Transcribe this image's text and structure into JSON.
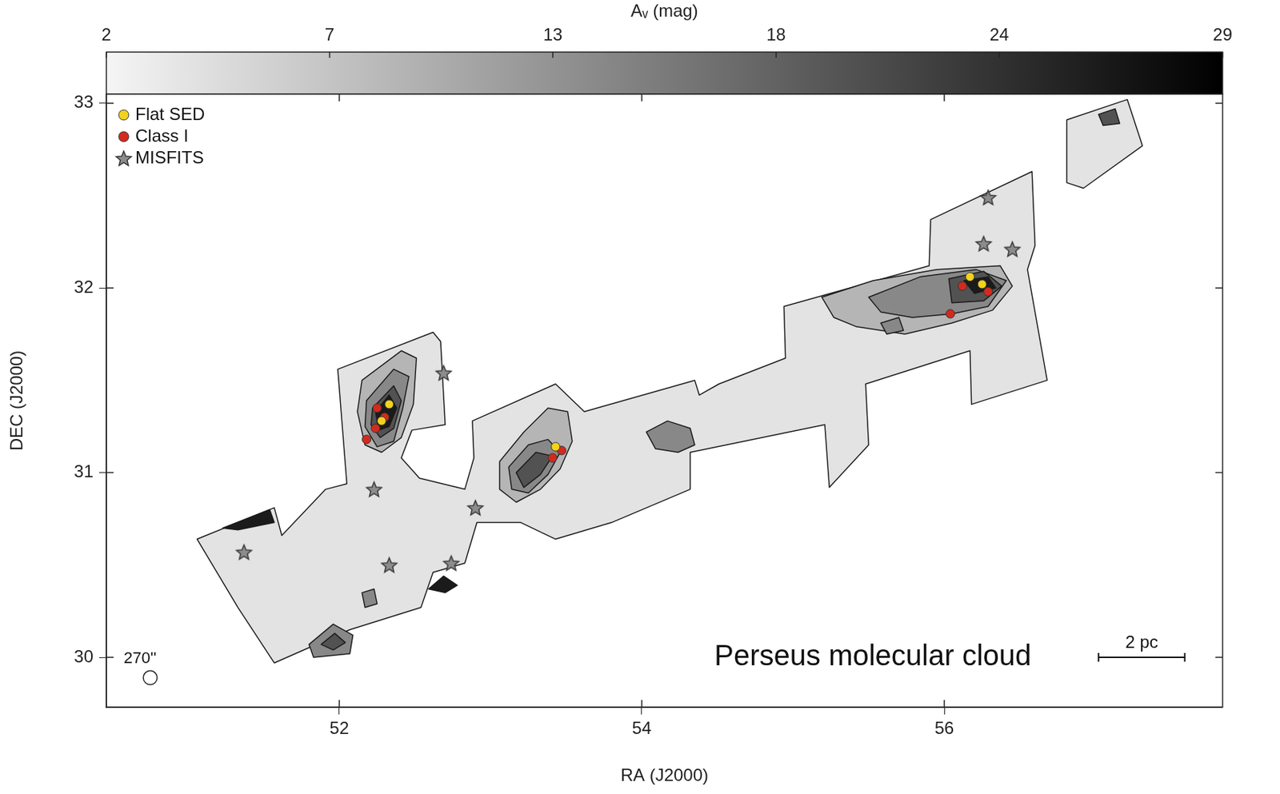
{
  "chart_data": {
    "type": "scatter",
    "x_label": "RA (J2000)",
    "y_label": "DEC (J2000)",
    "xlim": [
      50.46,
      57.84
    ],
    "xticks": [
      52,
      54,
      56
    ],
    "ylim": [
      29.73,
      33.05
    ],
    "yticks": [
      30,
      31,
      32,
      33
    ],
    "grid": false,
    "legend": "upper left",
    "series": [
      {
        "name": "Flat SED",
        "color": "#f2d21b",
        "marker": "circle",
        "x": [
          52.33,
          52.28,
          53.43,
          56.17,
          56.25
        ],
        "values": [
          31.37,
          31.28,
          31.14,
          32.06,
          32.02
        ]
      },
      {
        "name": "Class I",
        "color": "#d42a1e",
        "marker": "circle",
        "x": [
          52.25,
          52.3,
          52.24,
          52.18,
          53.41,
          53.47,
          56.12,
          56.29,
          56.04
        ],
        "values": [
          31.35,
          31.3,
          31.24,
          31.18,
          31.08,
          31.12,
          32.01,
          31.98,
          31.86
        ]
      },
      {
        "name": "MISFITS",
        "color": "#8c8c8c",
        "marker": "star",
        "x": [
          51.37,
          52.23,
          52.33,
          52.74,
          52.9,
          52.69,
          56.29,
          56.26,
          56.45
        ],
        "values": [
          30.57,
          30.91,
          30.5,
          30.51,
          30.81,
          31.54,
          32.49,
          32.24,
          32.21
        ]
      }
    ],
    "colorbar": {
      "label": "Aᵥ (mag)",
      "range": [
        2,
        29
      ],
      "ticks": [
        2,
        {
          "value": 7.4,
          "label": "7"
        },
        {
          "value": 12.8,
          "label": "13"
        },
        {
          "value": 18.2,
          "label": "18"
        },
        {
          "value": 23.6,
          "label": "24"
        },
        29
      ]
    },
    "regions": [
      {
        "av": 4,
        "points": [
          [
            51.06,
            30.64
          ],
          [
            51.57,
            30.81
          ],
          [
            51.62,
            30.66
          ],
          [
            51.91,
            30.91
          ],
          [
            52.05,
            30.94
          ],
          [
            51.99,
            31.56
          ],
          [
            52.62,
            31.76
          ],
          [
            52.67,
            31.71
          ],
          [
            52.7,
            31.26
          ],
          [
            52.48,
            31.23
          ],
          [
            52.41,
            31.08
          ],
          [
            52.53,
            30.97
          ],
          [
            52.83,
            30.91
          ],
          [
            52.89,
            31.08
          ],
          [
            52.88,
            31.28
          ],
          [
            53.43,
            31.48
          ],
          [
            53.62,
            31.33
          ],
          [
            54.35,
            31.5
          ],
          [
            54.38,
            31.42
          ],
          [
            54.51,
            31.48
          ],
          [
            54.95,
            31.62
          ],
          [
            54.94,
            31.9
          ],
          [
            55.9,
            32.12
          ],
          [
            55.91,
            32.37
          ],
          [
            56.58,
            32.63
          ],
          [
            56.6,
            32.23
          ],
          [
            56.55,
            32.1
          ],
          [
            56.68,
            31.5
          ],
          [
            56.18,
            31.37
          ],
          [
            56.17,
            31.66
          ],
          [
            55.48,
            31.48
          ],
          [
            55.5,
            31.15
          ],
          [
            55.24,
            30.92
          ],
          [
            55.21,
            31.26
          ],
          [
            54.32,
            31.11
          ],
          [
            54.32,
            30.91
          ],
          [
            53.8,
            30.73
          ],
          [
            53.43,
            30.64
          ],
          [
            53.2,
            30.73
          ],
          [
            52.91,
            30.73
          ],
          [
            52.83,
            30.51
          ],
          [
            52.62,
            30.46
          ],
          [
            52.54,
            30.27
          ],
          [
            52.07,
            30.15
          ],
          [
            51.57,
            29.97
          ],
          [
            51.33,
            30.27
          ]
        ]
      },
      {
        "av": 4,
        "points": [
          [
            56.81,
            32.91
          ],
          [
            57.21,
            33.02
          ],
          [
            57.31,
            32.77
          ],
          [
            56.92,
            32.54
          ],
          [
            56.81,
            32.57
          ]
        ]
      },
      {
        "av": 9,
        "points": [
          [
            55.19,
            31.95
          ],
          [
            55.53,
            32.04
          ],
          [
            55.95,
            32.1
          ],
          [
            56.37,
            32.12
          ],
          [
            56.45,
            32.01
          ],
          [
            56.32,
            31.88
          ],
          [
            56.05,
            31.81
          ],
          [
            55.74,
            31.75
          ],
          [
            55.42,
            31.79
          ],
          [
            55.27,
            31.84
          ]
        ]
      },
      {
        "av": 14,
        "points": [
          [
            55.5,
            31.95
          ],
          [
            55.84,
            32.06
          ],
          [
            56.21,
            32.1
          ],
          [
            56.41,
            32.04
          ],
          [
            56.29,
            31.9
          ],
          [
            56.05,
            31.86
          ],
          [
            55.79,
            31.84
          ],
          [
            55.58,
            31.87
          ]
        ]
      },
      {
        "av": 20,
        "points": [
          [
            56.03,
            32.05
          ],
          [
            56.26,
            32.09
          ],
          [
            56.38,
            32.01
          ],
          [
            56.26,
            31.93
          ],
          [
            56.05,
            31.92
          ]
        ]
      },
      {
        "av": 26,
        "points": [
          [
            56.13,
            32.04
          ],
          [
            56.29,
            32.06
          ],
          [
            56.34,
            32.0
          ],
          [
            56.2,
            31.97
          ]
        ]
      },
      {
        "av": 14,
        "points": [
          [
            55.58,
            31.81
          ],
          [
            55.7,
            31.84
          ],
          [
            55.73,
            31.77
          ],
          [
            55.62,
            31.75
          ]
        ]
      },
      {
        "av": 9,
        "points": [
          [
            52.15,
            31.5
          ],
          [
            52.41,
            31.66
          ],
          [
            52.51,
            31.62
          ],
          [
            52.49,
            31.37
          ],
          [
            52.41,
            31.19
          ],
          [
            52.28,
            31.11
          ],
          [
            52.17,
            31.15
          ],
          [
            52.12,
            31.33
          ]
        ]
      },
      {
        "av": 14,
        "points": [
          [
            52.18,
            31.39
          ],
          [
            52.36,
            31.56
          ],
          [
            52.46,
            31.52
          ],
          [
            52.42,
            31.35
          ],
          [
            52.36,
            31.17
          ],
          [
            52.25,
            31.14
          ],
          [
            52.17,
            31.25
          ]
        ]
      },
      {
        "av": 20,
        "points": [
          [
            52.22,
            31.35
          ],
          [
            52.36,
            31.47
          ],
          [
            52.41,
            31.39
          ],
          [
            52.36,
            31.24
          ],
          [
            52.27,
            31.19
          ],
          [
            52.21,
            31.26
          ]
        ]
      },
      {
        "av": 26,
        "points": [
          [
            52.24,
            31.33
          ],
          [
            52.33,
            31.42
          ],
          [
            52.38,
            31.35
          ],
          [
            52.33,
            31.25
          ],
          [
            52.26,
            31.23
          ]
        ]
      },
      {
        "av": 9,
        "points": [
          [
            53.06,
            31.06
          ],
          [
            53.22,
            31.22
          ],
          [
            53.38,
            31.35
          ],
          [
            53.51,
            31.33
          ],
          [
            53.54,
            31.17
          ],
          [
            53.46,
            31.02
          ],
          [
            53.33,
            30.91
          ],
          [
            53.17,
            30.84
          ],
          [
            53.06,
            30.91
          ]
        ]
      },
      {
        "av": 14,
        "points": [
          [
            53.12,
            31.03
          ],
          [
            53.25,
            31.15
          ],
          [
            53.38,
            31.18
          ],
          [
            53.46,
            31.11
          ],
          [
            53.38,
            30.99
          ],
          [
            53.25,
            30.89
          ],
          [
            53.14,
            30.91
          ]
        ]
      },
      {
        "av": 20,
        "points": [
          [
            53.17,
            31.0
          ],
          [
            53.3,
            31.11
          ],
          [
            53.41,
            31.09
          ],
          [
            53.33,
            30.99
          ],
          [
            53.22,
            30.92
          ]
        ]
      },
      {
        "av": 14,
        "points": [
          [
            54.03,
            31.22
          ],
          [
            54.17,
            31.28
          ],
          [
            54.32,
            31.24
          ],
          [
            54.35,
            31.15
          ],
          [
            54.24,
            31.11
          ],
          [
            54.09,
            31.13
          ]
        ]
      },
      {
        "av": 14,
        "points": [
          [
            51.8,
            30.07
          ],
          [
            51.96,
            30.18
          ],
          [
            52.09,
            30.12
          ],
          [
            52.07,
            30.02
          ],
          [
            51.83,
            30.0
          ]
        ]
      },
      {
        "av": 20,
        "points": [
          [
            51.88,
            30.07
          ],
          [
            51.97,
            30.13
          ],
          [
            52.04,
            30.08
          ],
          [
            51.96,
            30.04
          ]
        ]
      },
      {
        "av": 26,
        "points": [
          [
            51.23,
            30.7
          ],
          [
            51.54,
            30.8
          ],
          [
            51.57,
            30.73
          ],
          [
            51.33,
            30.69
          ]
        ]
      },
      {
        "av": 14,
        "points": [
          [
            52.15,
            30.35
          ],
          [
            52.23,
            30.37
          ],
          [
            52.25,
            30.29
          ],
          [
            52.17,
            30.27
          ]
        ]
      },
      {
        "av": 26,
        "points": [
          [
            52.59,
            30.37
          ],
          [
            52.69,
            30.44
          ],
          [
            52.78,
            30.39
          ],
          [
            52.7,
            30.35
          ]
        ]
      },
      {
        "av": 20,
        "points": [
          [
            57.02,
            32.94
          ],
          [
            57.13,
            32.97
          ],
          [
            57.16,
            32.89
          ],
          [
            57.05,
            32.88
          ]
        ]
      }
    ],
    "annotations": [
      {
        "text": "Perseus molecular cloud",
        "x": 54.48,
        "y": 30.0
      }
    ],
    "scale_bar": {
      "label": "2 pc",
      "x": [
        57.02,
        57.59
      ],
      "y": 30.0
    },
    "beam": {
      "label": "270''",
      "x": 50.75,
      "y": 29.89,
      "diameter": 0.075
    }
  }
}
